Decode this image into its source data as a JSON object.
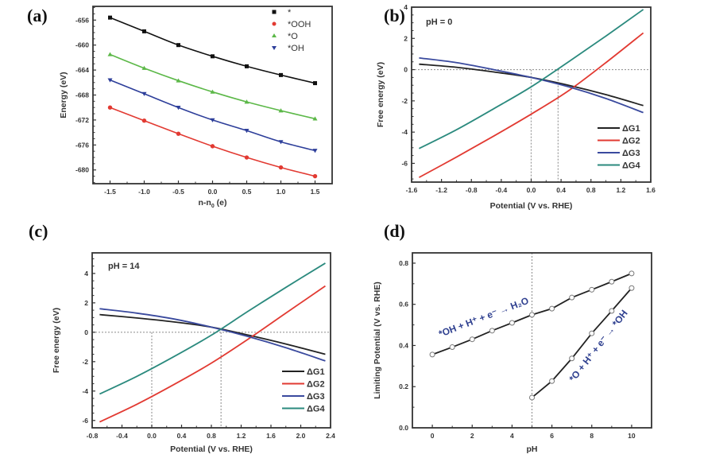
{
  "chart_data": [
    {
      "id": "a",
      "panel_label": "(a)",
      "type": "line",
      "title": "",
      "xlabel": "n-n",
      "xlabel_sub": "0",
      "xlabel_suffix": " (e)",
      "ylabel": "Energy (eV)",
      "xlim": [
        -1.75,
        1.75
      ],
      "ylim": [
        -682.2,
        -653.8
      ],
      "xticks": [
        -1.5,
        -1.0,
        -0.5,
        0.0,
        0.5,
        1.0,
        1.5
      ],
      "xtick_labels": [
        "-1.5",
        "-1.0",
        "-0.5",
        "0.0",
        "0.5",
        "1.0",
        "1.5"
      ],
      "yticks": [
        -656,
        -660,
        -664,
        -668,
        -672,
        -676,
        -680
      ],
      "ytick_labels": [
        "-656",
        "-660",
        "-664",
        "-668",
        "-672",
        "-676",
        "-680"
      ],
      "legend_position": "top-right",
      "x": [
        -1.5,
        -1.0,
        -0.5,
        0.0,
        0.5,
        1.0,
        1.5
      ],
      "series": [
        {
          "name": "*",
          "color": "#111111",
          "marker": "square",
          "values": [
            -655.6,
            -657.8,
            -660.0,
            -661.8,
            -663.4,
            -664.8,
            -666.1
          ]
        },
        {
          "name": "*OOH",
          "color": "#e23a32",
          "marker": "circle",
          "values": [
            -670.0,
            -672.1,
            -674.2,
            -676.2,
            -678.0,
            -679.6,
            -681.0
          ]
        },
        {
          "name": "*O",
          "color": "#5cb848",
          "marker": "triangle-up",
          "values": [
            -661.5,
            -663.7,
            -665.7,
            -667.5,
            -669.1,
            -670.5,
            -671.8
          ]
        },
        {
          "name": "*OH",
          "color": "#2d3e9a",
          "marker": "triangle-down",
          "values": [
            -665.6,
            -667.8,
            -670.0,
            -672.0,
            -673.7,
            -675.5,
            -676.9
          ]
        }
      ]
    },
    {
      "id": "b",
      "panel_label": "(b)",
      "type": "line",
      "title": "pH = 0",
      "xlabel": "Potential (V vs. RHE)",
      "ylabel": "Free energy (eV)",
      "xlim": [
        -1.6,
        1.6
      ],
      "ylim": [
        -7.2,
        4.0
      ],
      "xticks": [
        -1.6,
        -1.2,
        -0.8,
        -0.4,
        0.0,
        0.4,
        0.8,
        1.2,
        1.6
      ],
      "xtick_labels": [
        "-1.6",
        "-1.2",
        "-0.8",
        "-0.4",
        "0.0",
        "0.4",
        "0.8",
        "1.2",
        "1.6"
      ],
      "yticks": [
        4,
        2,
        0,
        -2,
        -4,
        -6
      ],
      "ytick_labels": [
        "4",
        "2",
        "0",
        "-2",
        "-4",
        "-6"
      ],
      "reference_lines": {
        "horizontal_y": 0,
        "vertical_x": [
          0.0,
          0.36
        ]
      },
      "legend_position": "bottom-right",
      "x": [
        -1.5,
        -1.0,
        -0.5,
        0.0,
        0.5,
        1.0,
        1.5
      ],
      "series": [
        {
          "name": "ΔG1",
          "color": "#222222",
          "values": [
            0.35,
            0.15,
            -0.15,
            -0.5,
            -1.0,
            -1.6,
            -2.3
          ]
        },
        {
          "name": "ΔG2",
          "color": "#e23a32",
          "values": [
            -6.9,
            -5.6,
            -4.25,
            -2.85,
            -1.35,
            0.45,
            2.35
          ]
        },
        {
          "name": "ΔG3",
          "color": "#3a4a9e",
          "values": [
            0.75,
            0.45,
            0.0,
            -0.5,
            -1.1,
            -1.85,
            -2.75
          ]
        },
        {
          "name": "ΔG4",
          "color": "#2b8a7e",
          "values": [
            -5.05,
            -3.85,
            -2.5,
            -1.1,
            0.5,
            2.15,
            3.85
          ]
        }
      ]
    },
    {
      "id": "c",
      "panel_label": "(c)",
      "type": "line",
      "title": "pH = 14",
      "xlabel": "Potential (V vs. RHE)",
      "ylabel": "Free energy (eV)",
      "xlim": [
        -0.8,
        2.4
      ],
      "ylim": [
        -6.5,
        5.4
      ],
      "xticks": [
        -0.8,
        -0.4,
        0.0,
        0.4,
        0.8,
        1.2,
        1.6,
        2.0,
        2.4
      ],
      "xtick_labels": [
        "-0.8",
        "-0.4",
        "0.0",
        "0.4",
        "0.8",
        "1.2",
        "1.6",
        "2.0",
        "2.4"
      ],
      "yticks": [
        4,
        2,
        0,
        -2,
        -4,
        -6
      ],
      "ytick_labels": [
        "4",
        "2",
        "0",
        "-2",
        "-4",
        "-6"
      ],
      "reference_lines": {
        "horizontal_y": 0,
        "vertical_x": [
          0.0,
          0.93
        ]
      },
      "legend_position": "bottom-right",
      "x": [
        -0.7,
        -0.2,
        0.3,
        0.8,
        1.3,
        1.8,
        2.33
      ],
      "series": [
        {
          "name": "ΔG1",
          "color": "#222222",
          "values": [
            1.2,
            0.97,
            0.7,
            0.35,
            -0.2,
            -0.8,
            -1.5
          ]
        },
        {
          "name": "ΔG2",
          "color": "#e23a32",
          "values": [
            -6.1,
            -4.9,
            -3.55,
            -2.1,
            -0.45,
            1.3,
            3.15
          ]
        },
        {
          "name": "ΔG3",
          "color": "#3a4a9e",
          "values": [
            1.6,
            1.3,
            0.9,
            0.35,
            -0.3,
            -1.05,
            -1.95
          ]
        },
        {
          "name": "ΔG4",
          "color": "#2b8a7e",
          "values": [
            -4.2,
            -3.0,
            -1.65,
            -0.2,
            1.45,
            3.05,
            4.7
          ]
        }
      ]
    },
    {
      "id": "d",
      "panel_label": "(d)",
      "type": "line",
      "title": "",
      "xlabel": "pH",
      "ylabel": "Limiting Potential (V vs. RHE)",
      "xlim": [
        -1,
        11
      ],
      "ylim": [
        0.0,
        0.85
      ],
      "xticks": [
        0,
        2,
        4,
        6,
        8,
        10
      ],
      "xtick_labels": [
        "0",
        "2",
        "4",
        "6",
        "8",
        "10"
      ],
      "yticks": [
        0.0,
        0.2,
        0.4,
        0.6,
        0.8
      ],
      "ytick_labels": [
        "0.0",
        "0.2",
        "0.4",
        "0.6",
        "0.8"
      ],
      "reference_lines": {
        "vertical_x": [
          5
        ]
      },
      "legend_position": "none",
      "series": [
        {
          "name": "*OH + H⁺ + e⁻ → H₂O",
          "color": "#222222",
          "marker": "open-circle",
          "x": [
            0,
            1,
            2,
            3,
            4,
            5,
            6,
            7,
            8,
            9,
            10
          ],
          "values": [
            0.356,
            0.392,
            0.43,
            0.472,
            0.51,
            0.549,
            0.579,
            0.633,
            0.671,
            0.71,
            0.75
          ]
        },
        {
          "name": "*O + H⁺ + e⁻ → *OH",
          "color": "#222222",
          "marker": "open-circle",
          "x": [
            5,
            6,
            7,
            8,
            9,
            10
          ],
          "values": [
            0.147,
            0.227,
            0.337,
            0.459,
            0.568,
            0.679
          ]
        }
      ],
      "annotations": [
        {
          "text": "*OH + H⁺ + e⁻ → H₂O",
          "color": "#2e3f8f",
          "anchor_x": 0.4,
          "anchor_y": 0.44,
          "angle_deg": -21
        },
        {
          "text": "*O + H⁺ + e⁻ → *OH",
          "color": "#2e3f8f",
          "anchor_x": 7.1,
          "anchor_y": 0.22,
          "angle_deg": -52
        }
      ]
    }
  ]
}
